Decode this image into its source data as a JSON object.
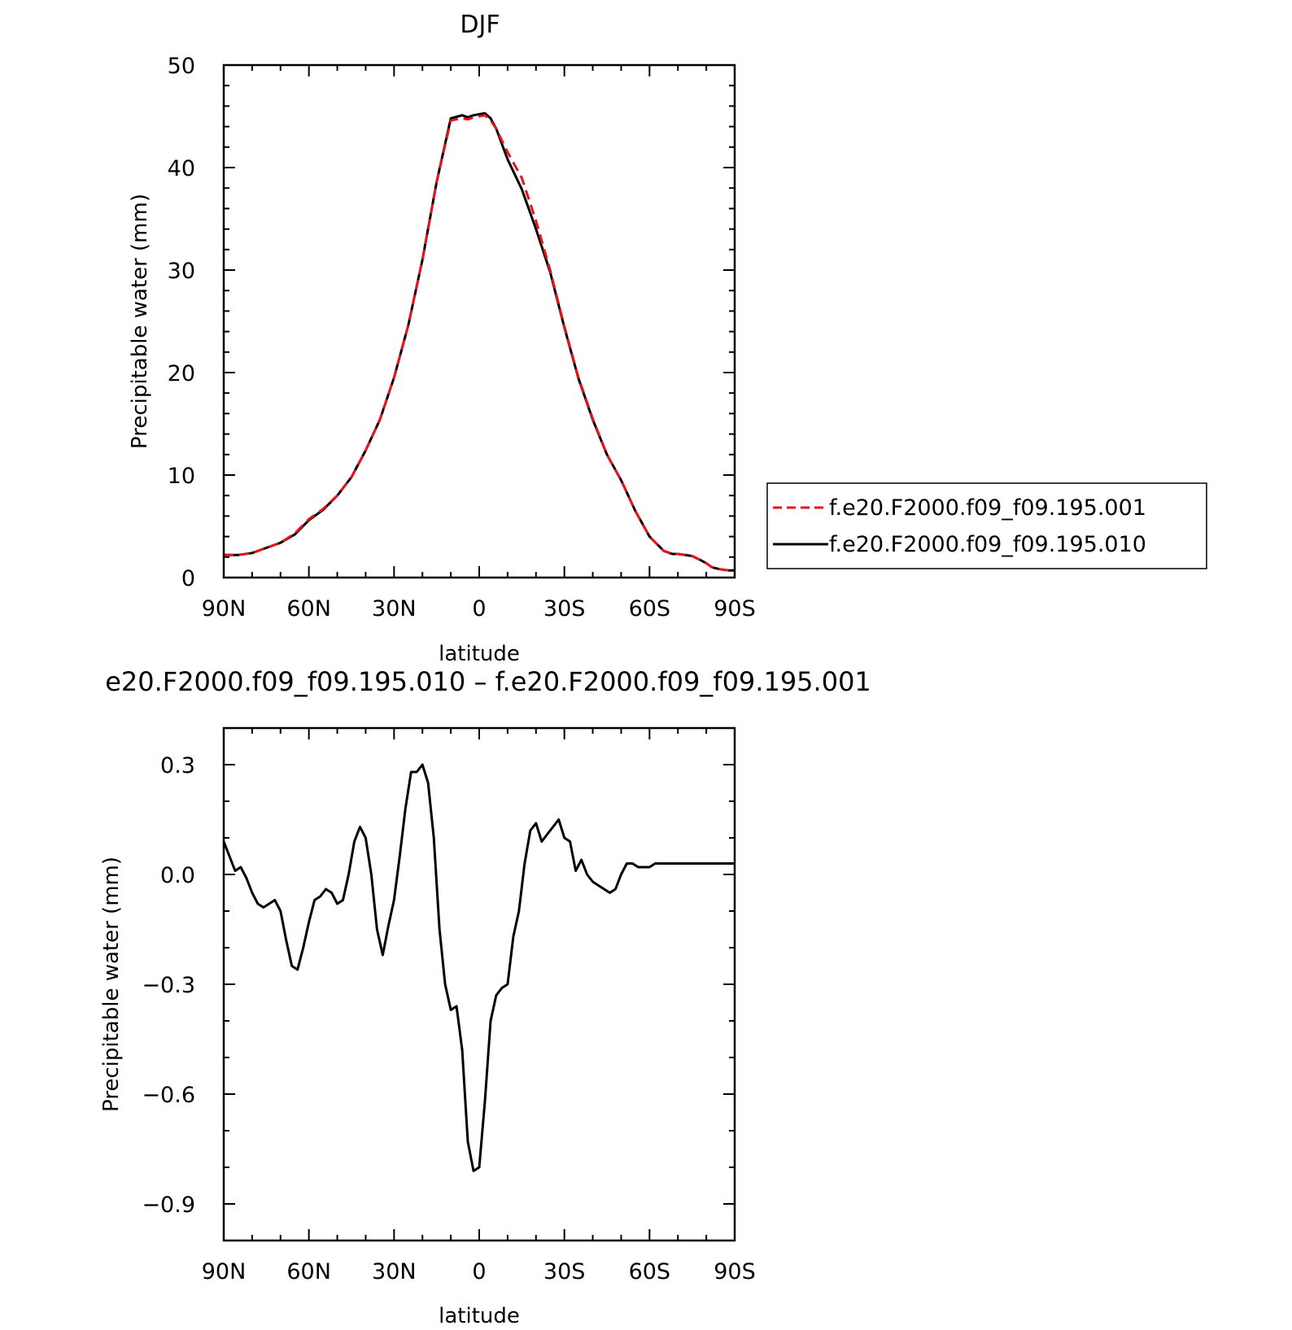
{
  "chart_data": [
    {
      "type": "line",
      "title": "DJF",
      "xlabel": "latitude",
      "ylabel": "Precipitable water (mm)",
      "xlim": [
        -90,
        90
      ],
      "ylim": [
        0,
        50
      ],
      "x_tick_values": [
        -90,
        -60,
        -30,
        0,
        30,
        60,
        90
      ],
      "x_tick_labels": [
        "90N",
        "60N",
        "30N",
        "0",
        "30S",
        "60S",
        "90S"
      ],
      "y_tick_values": [
        0,
        10,
        20,
        30,
        40,
        50
      ],
      "y_tick_labels": [
        "0",
        "10",
        "20",
        "30",
        "40",
        "50"
      ],
      "legend": {
        "placement": "right",
        "entries": [
          "f.e20.F2000.f09_f09.195.001",
          "f.e20.F2000.f09_f09.195.010"
        ]
      },
      "x": [
        -90,
        -85,
        -80,
        -75,
        -70,
        -65,
        -60,
        -55,
        -50,
        -45,
        -40,
        -35,
        -30,
        -25,
        -20,
        -15,
        -10,
        -6,
        -4,
        -2,
        0,
        2,
        4,
        6,
        10,
        15,
        20,
        25,
        30,
        35,
        40,
        45,
        50,
        55,
        60,
        65,
        68,
        70,
        75,
        78,
        80,
        82,
        85,
        88,
        90
      ],
      "series": [
        {
          "name": "f.e20.F2000.f09_f09.195.001",
          "color": "#e8141a",
          "dash": "dashed",
          "values": [
            2.2,
            2.2,
            2.4,
            2.9,
            3.4,
            4.3,
            5.7,
            6.7,
            8.0,
            9.8,
            12.4,
            15.4,
            19.5,
            24.6,
            31.0,
            38.6,
            44.6,
            44.8,
            44.7,
            44.9,
            45.0,
            45.1,
            44.6,
            43.8,
            41.5,
            39.0,
            34.8,
            30.0,
            24.5,
            19.5,
            15.5,
            12.0,
            9.5,
            6.5,
            4.0,
            2.6,
            2.3,
            2.3,
            2.1,
            1.7,
            1.4,
            1.0,
            0.8,
            0.7,
            0.7
          ]
        },
        {
          "name": "f.e20.F2000.f09_f09.195.010",
          "color": "#000000",
          "dash": "solid",
          "values": [
            2.2,
            2.2,
            2.4,
            2.9,
            3.4,
            4.2,
            5.6,
            6.6,
            8.0,
            9.8,
            12.4,
            15.4,
            19.5,
            24.6,
            31.0,
            38.6,
            44.8,
            45.1,
            44.9,
            45.1,
            45.2,
            45.3,
            44.8,
            43.8,
            40.8,
            37.9,
            34.0,
            29.8,
            24.4,
            19.4,
            15.4,
            12.0,
            9.5,
            6.5,
            4.0,
            2.6,
            2.3,
            2.3,
            2.1,
            1.7,
            1.4,
            1.0,
            0.8,
            0.7,
            0.7
          ]
        }
      ]
    },
    {
      "type": "line",
      "title": "e20.F2000.f09_f09.195.010 – f.e20.F2000.f09_f09.195.001",
      "xlabel": "latitude",
      "ylabel": "Precipitable water (mm)",
      "xlim": [
        -90,
        90
      ],
      "ylim": [
        -1.0,
        0.4
      ],
      "x_tick_values": [
        -90,
        -60,
        -30,
        0,
        30,
        60,
        90
      ],
      "x_tick_labels": [
        "90N",
        "60N",
        "30N",
        "0",
        "30S",
        "60S",
        "90S"
      ],
      "y_tick_values": [
        0.3,
        0.0,
        -0.3,
        -0.6,
        -0.9
      ],
      "y_tick_labels": [
        "0.3",
        "0.0",
        "−0.3",
        "−0.6",
        "−0.9"
      ],
      "series": [
        {
          "color": "#000000",
          "x": [
            -90,
            -88,
            -86,
            -84,
            -82,
            -80,
            -78,
            -76,
            -74,
            -72,
            -70,
            -68,
            -66,
            -64,
            -62,
            -60,
            -58,
            -56,
            -54,
            -52,
            -50,
            -48,
            -46,
            -44,
            -42,
            -40,
            -38,
            -36,
            -34,
            -32,
            -30,
            -28,
            -26,
            -24,
            -22,
            -20,
            -18,
            -16,
            -14,
            -12,
            -10,
            -8,
            -6,
            -4,
            -2,
            0,
            2,
            4,
            6,
            8,
            10,
            12,
            14,
            16,
            18,
            20,
            22,
            24,
            26,
            28,
            30,
            32,
            34,
            36,
            38,
            40,
            42,
            44,
            46,
            48,
            50,
            52,
            54,
            56,
            58,
            60,
            62,
            64,
            66,
            68,
            70,
            72,
            74,
            76,
            78,
            80,
            82,
            84,
            86,
            88,
            90
          ],
          "values": [
            0.09,
            0.05,
            0.01,
            0.02,
            -0.01,
            -0.05,
            -0.08,
            -0.09,
            -0.08,
            -0.07,
            -0.1,
            -0.18,
            -0.25,
            -0.26,
            -0.2,
            -0.13,
            -0.07,
            -0.06,
            -0.04,
            -0.05,
            -0.08,
            -0.07,
            0.0,
            0.09,
            0.13,
            0.1,
            0.0,
            -0.15,
            -0.22,
            -0.14,
            -0.07,
            0.05,
            0.18,
            0.28,
            0.28,
            0.3,
            0.25,
            0.1,
            -0.15,
            -0.3,
            -0.37,
            -0.36,
            -0.48,
            -0.73,
            -0.81,
            -0.8,
            -0.62,
            -0.4,
            -0.33,
            -0.31,
            -0.3,
            -0.17,
            -0.1,
            0.03,
            0.12,
            0.14,
            0.09,
            0.11,
            0.13,
            0.15,
            0.1,
            0.09,
            0.01,
            0.04,
            0.0,
            -0.02,
            -0.03,
            -0.04,
            -0.05,
            -0.04,
            0.0,
            0.03,
            0.03,
            0.02,
            0.02,
            0.02,
            0.03,
            0.03,
            0.03,
            0.03,
            0.03,
            0.03,
            0.03,
            0.03,
            0.03,
            0.03,
            0.03,
            0.03,
            0.03,
            0.03,
            0.03
          ]
        }
      ]
    }
  ]
}
